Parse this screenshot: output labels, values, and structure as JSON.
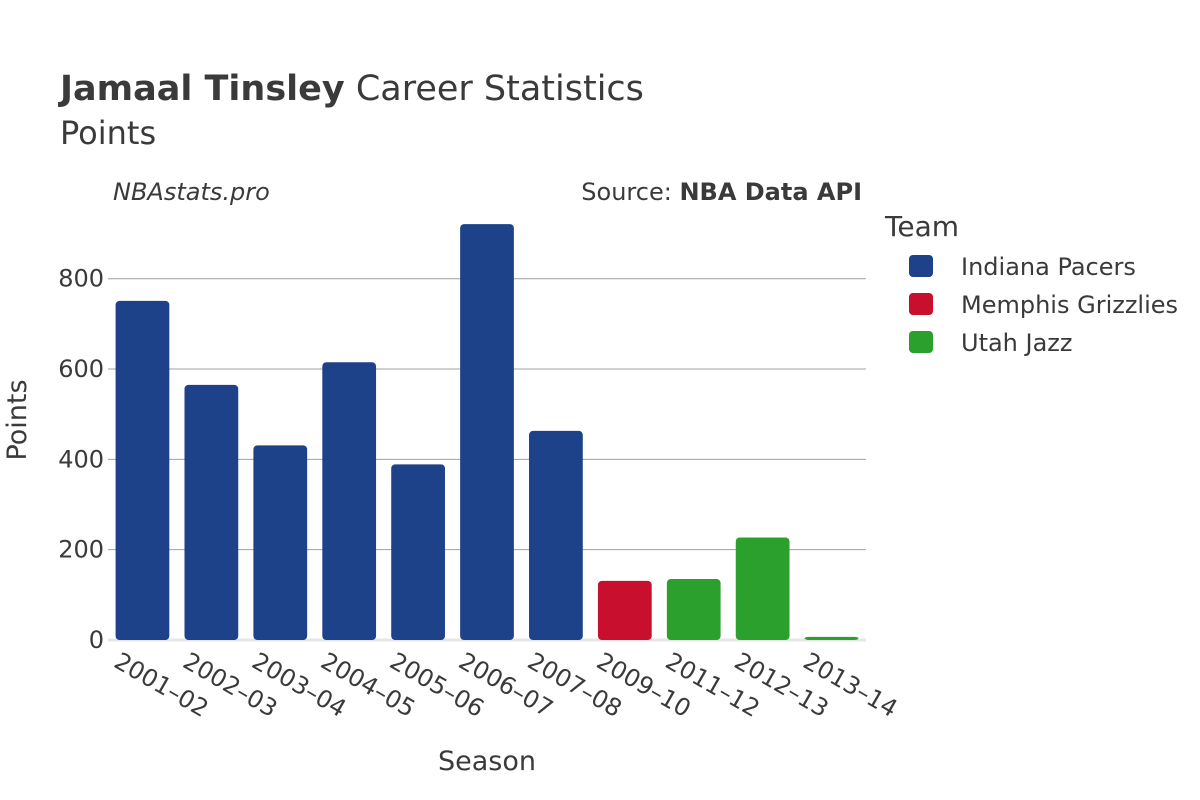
{
  "header": {
    "player_name": "Jamaal Tinsley",
    "title_rest": " Career Statistics",
    "subtitle": "Points",
    "watermark": "NBAstats.pro",
    "source_prefix": "Source: ",
    "source_name": "NBA Data API"
  },
  "legend": {
    "title": "Team",
    "items": [
      {
        "name": "Indiana Pacers",
        "color": "#1d428a"
      },
      {
        "name": "Memphis Grizzlies",
        "color": "#c8102e"
      },
      {
        "name": "Utah Jazz",
        "color": "#2ca02c"
      }
    ]
  },
  "chart_data": {
    "type": "bar",
    "xlabel": "Season",
    "ylabel": "Points",
    "ylim": [
      0,
      930
    ],
    "yticks": [
      0,
      200,
      400,
      600,
      800
    ],
    "grid": true,
    "legend_position": "right",
    "categories": [
      "2001–02",
      "2002–03",
      "2003–04",
      "2004–05",
      "2005–06",
      "2006–07",
      "2007–08",
      "2009–10",
      "2011–12",
      "2012–13",
      "2013–14"
    ],
    "values": [
      751,
      565,
      431,
      615,
      389,
      921,
      463,
      131,
      135,
      227,
      7
    ],
    "teams": [
      "Indiana Pacers",
      "Indiana Pacers",
      "Indiana Pacers",
      "Indiana Pacers",
      "Indiana Pacers",
      "Indiana Pacers",
      "Indiana Pacers",
      "Memphis Grizzlies",
      "Utah Jazz",
      "Utah Jazz",
      "Utah Jazz"
    ]
  }
}
